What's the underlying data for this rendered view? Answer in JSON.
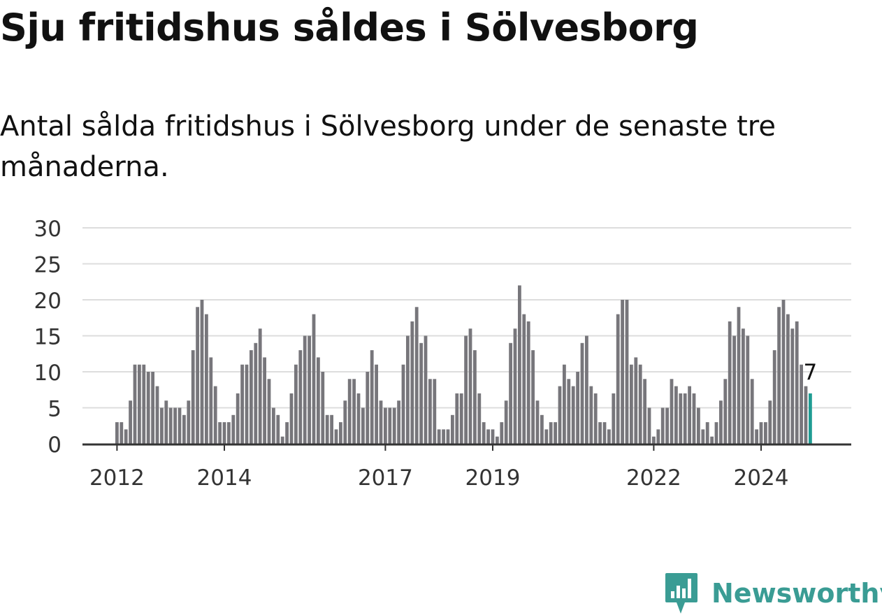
{
  "title": "Sju fritidshus såldes i Sölvesborg",
  "subtitle": "Antal sålda fritidshus i Sölvesborg under de senaste tre månaderna.",
  "brand": {
    "name": "Newsworthy",
    "color": "#3a9c94"
  },
  "colors": {
    "bar": "#77767b",
    "highlight": "#1f9c93",
    "grid": "#dddddd",
    "axis": "#333333"
  },
  "chart_data": {
    "type": "bar",
    "x_start": "2012-01",
    "ylim": [
      0,
      30
    ],
    "yticks": [
      "0",
      "5",
      "10",
      "15",
      "20",
      "25",
      "30"
    ],
    "xticks": [
      {
        "label": "2012",
        "index": 0
      },
      {
        "label": "2014",
        "index": 24
      },
      {
        "label": "2017",
        "index": 60
      },
      {
        "label": "2019",
        "index": 84
      },
      {
        "label": "2022",
        "index": 120
      },
      {
        "label": "2024",
        "index": 144
      }
    ],
    "values": [
      3,
      3,
      2,
      6,
      11,
      11,
      11,
      10,
      10,
      8,
      5,
      6,
      5,
      5,
      5,
      4,
      6,
      13,
      19,
      20,
      18,
      12,
      8,
      3,
      3,
      3,
      4,
      7,
      11,
      11,
      13,
      14,
      16,
      12,
      9,
      5,
      4,
      1,
      3,
      7,
      11,
      13,
      15,
      15,
      18,
      12,
      10,
      4,
      4,
      2,
      3,
      6,
      9,
      9,
      7,
      5,
      10,
      13,
      11,
      6,
      5,
      5,
      5,
      6,
      11,
      15,
      17,
      19,
      14,
      15,
      9,
      9,
      2,
      2,
      2,
      4,
      7,
      7,
      15,
      16,
      13,
      7,
      3,
      2,
      2,
      1,
      3,
      6,
      14,
      16,
      22,
      18,
      17,
      13,
      6,
      4,
      2,
      3,
      3,
      8,
      11,
      9,
      8,
      10,
      14,
      15,
      8,
      7,
      3,
      3,
      2,
      7,
      18,
      20,
      20,
      11,
      12,
      11,
      9,
      5,
      1,
      2,
      5,
      5,
      9,
      8,
      7,
      7,
      8,
      7,
      5,
      2,
      3,
      1,
      3,
      6,
      9,
      17,
      15,
      19,
      16,
      15,
      9,
      2,
      3,
      3,
      6,
      13,
      19,
      20,
      18,
      16,
      17,
      11,
      8,
      7
    ],
    "highlight_index": 155,
    "highlight_label": "7"
  }
}
